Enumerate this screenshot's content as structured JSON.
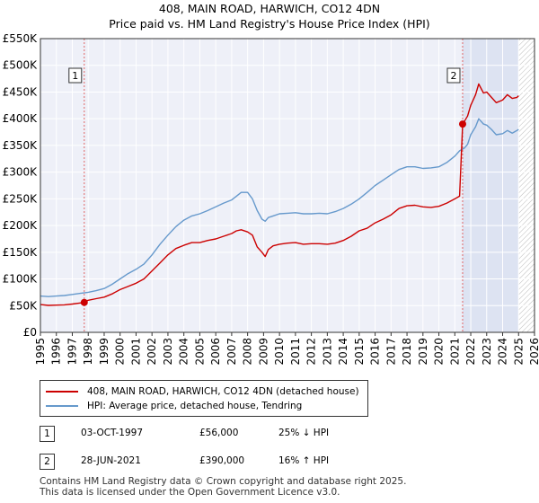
{
  "title_line1": "408, MAIN ROAD, HARWICH, CO12 4DN",
  "title_line2": "Price paid vs. HM Land Registry's House Price Index (HPI)",
  "chart_data": {
    "type": "line",
    "title": "408, MAIN ROAD, HARWICH, CO12 4DN — Price paid vs. HM Land Registry's House Price Index (HPI)",
    "xlim": [
      1995,
      2026
    ],
    "ylim": [
      0,
      550000
    ],
    "x_ticks": [
      "1995",
      "1996",
      "1997",
      "1998",
      "1999",
      "2000",
      "2001",
      "2002",
      "2003",
      "2004",
      "2005",
      "2006",
      "2007",
      "2008",
      "2009",
      "2010",
      "2011",
      "2012",
      "2013",
      "2014",
      "2015",
      "2016",
      "2017",
      "2018",
      "2019",
      "2020",
      "2021",
      "2022",
      "2023",
      "2024",
      "2025",
      "2026"
    ],
    "y_ticks": [
      {
        "value": 0,
        "label": "£0"
      },
      {
        "value": 50000,
        "label": "£50K"
      },
      {
        "value": 100000,
        "label": "£100K"
      },
      {
        "value": 150000,
        "label": "£150K"
      },
      {
        "value": 200000,
        "label": "£200K"
      },
      {
        "value": 250000,
        "label": "£250K"
      },
      {
        "value": 300000,
        "label": "£300K"
      },
      {
        "value": 350000,
        "label": "£350K"
      },
      {
        "value": 400000,
        "label": "£400K"
      },
      {
        "value": 450000,
        "label": "£450K"
      },
      {
        "value": 500000,
        "label": "£500K"
      },
      {
        "value": 550000,
        "label": "£550K"
      }
    ],
    "shaded_period_start": 2021.49,
    "hatched_period_start": 2025.0,
    "series": [
      {
        "name": "408, MAIN ROAD, HARWICH, CO12 4DN (detached house)",
        "color": "#cc0000",
        "x": [
          1995.0,
          1995.5,
          1996.0,
          1996.5,
          1997.0,
          1997.5,
          1997.75,
          1998.0,
          1998.5,
          1999.0,
          1999.5,
          2000.0,
          2000.5,
          2001.0,
          2001.5,
          2002.0,
          2002.5,
          2003.0,
          2003.5,
          2004.0,
          2004.5,
          2005.0,
          2005.5,
          2006.0,
          2006.5,
          2007.0,
          2007.3,
          2007.6,
          2008.0,
          2008.3,
          2008.6,
          2008.9,
          2009.1,
          2009.3,
          2009.6,
          2010.0,
          2010.5,
          2011.0,
          2011.5,
          2012.0,
          2012.5,
          2013.0,
          2013.5,
          2014.0,
          2014.5,
          2015.0,
          2015.5,
          2016.0,
          2016.5,
          2017.0,
          2017.5,
          2018.0,
          2018.5,
          2019.0,
          2019.5,
          2020.0,
          2020.5,
          2021.0,
          2021.3,
          2021.49,
          2021.6,
          2021.8,
          2022.0,
          2022.3,
          2022.5,
          2022.8,
          2023.0,
          2023.3,
          2023.6,
          2024.0,
          2024.3,
          2024.6,
          2024.9,
          2025.0
        ],
        "values": [
          52000,
          50500,
          51000,
          51500,
          53000,
          55000,
          56000,
          60000,
          63000,
          66000,
          72000,
          80000,
          86000,
          92000,
          100000,
          115000,
          130000,
          145000,
          157000,
          163000,
          168000,
          168000,
          172000,
          175000,
          180000,
          185000,
          190000,
          192000,
          188000,
          182000,
          160000,
          150000,
          142000,
          155000,
          162000,
          165000,
          167000,
          168000,
          165000,
          166000,
          166000,
          165000,
          167000,
          172000,
          180000,
          190000,
          195000,
          205000,
          212000,
          220000,
          232000,
          237000,
          238000,
          235000,
          234000,
          236000,
          242000,
          250000,
          255000,
          390000,
          395000,
          405000,
          425000,
          445000,
          465000,
          448000,
          450000,
          440000,
          430000,
          435000,
          445000,
          438000,
          440000,
          443000
        ]
      },
      {
        "name": "HPI: Average price, detached house, Tendring",
        "color": "#6699cc",
        "x": [
          1995.0,
          1995.5,
          1996.0,
          1996.5,
          1997.0,
          1997.5,
          1998.0,
          1998.5,
          1999.0,
          1999.5,
          2000.0,
          2000.5,
          2001.0,
          2001.5,
          2002.0,
          2002.5,
          2003.0,
          2003.5,
          2004.0,
          2004.5,
          2005.0,
          2005.5,
          2006.0,
          2006.5,
          2007.0,
          2007.3,
          2007.6,
          2008.0,
          2008.3,
          2008.6,
          2008.9,
          2009.1,
          2009.3,
          2009.6,
          2010.0,
          2010.5,
          2011.0,
          2011.5,
          2012.0,
          2012.5,
          2013.0,
          2013.5,
          2014.0,
          2014.5,
          2015.0,
          2015.5,
          2016.0,
          2016.5,
          2017.0,
          2017.5,
          2018.0,
          2018.5,
          2019.0,
          2019.5,
          2020.0,
          2020.5,
          2021.0,
          2021.3,
          2021.6,
          2021.8,
          2022.0,
          2022.3,
          2022.5,
          2022.8,
          2023.0,
          2023.3,
          2023.6,
          2024.0,
          2024.3,
          2024.6,
          2024.9,
          2025.0
        ],
        "values": [
          68000,
          67000,
          68000,
          69000,
          71000,
          73000,
          75000,
          78000,
          82000,
          90000,
          100000,
          110000,
          118000,
          128000,
          145000,
          165000,
          182000,
          198000,
          210000,
          218000,
          222000,
          228000,
          235000,
          242000,
          248000,
          255000,
          262000,
          262000,
          250000,
          228000,
          212000,
          208000,
          215000,
          218000,
          222000,
          223000,
          224000,
          222000,
          222000,
          223000,
          222000,
          226000,
          232000,
          240000,
          250000,
          262000,
          275000,
          285000,
          295000,
          305000,
          310000,
          310000,
          307000,
          308000,
          310000,
          318000,
          330000,
          340000,
          345000,
          352000,
          370000,
          385000,
          400000,
          390000,
          388000,
          380000,
          370000,
          372000,
          378000,
          373000,
          378000,
          380000
        ]
      }
    ],
    "annotations": [
      {
        "label": "1",
        "x": 1997.75,
        "y": 56000
      },
      {
        "label": "2",
        "x": 2021.49,
        "y": 390000
      }
    ]
  },
  "legend": {
    "items": [
      {
        "label": "408, MAIN ROAD, HARWICH, CO12 4DN (detached house)",
        "color": "#cc0000"
      },
      {
        "label": "HPI: Average price, detached house, Tendring",
        "color": "#6699cc"
      }
    ]
  },
  "transactions": [
    {
      "num": "1",
      "date": "03-OCT-1997",
      "price": "£56,000",
      "hpi": "25% ↓ HPI"
    },
    {
      "num": "2",
      "date": "28-JUN-2021",
      "price": "£390,000",
      "hpi": "16% ↑ HPI"
    }
  ],
  "footer": {
    "line1": "Contains HM Land Registry data © Crown copyright and database right 2025.",
    "line2": "This data is licensed under the Open Government Licence v3.0."
  }
}
